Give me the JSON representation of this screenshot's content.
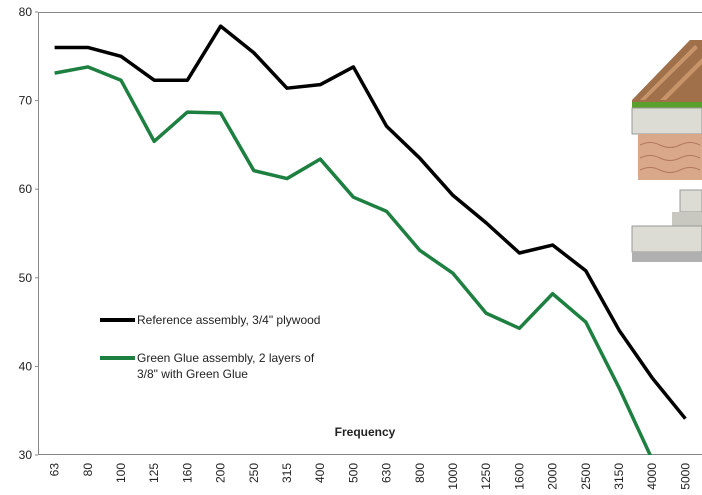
{
  "chart_data": {
    "type": "line",
    "x_label": "Frequency",
    "categories": [
      "63",
      "80",
      "100",
      "125",
      "160",
      "200",
      "250",
      "315",
      "400",
      "500",
      "630",
      "800",
      "1000",
      "1250",
      "1600",
      "2000",
      "2500",
      "3150",
      "4000",
      "5000"
    ],
    "series": [
      {
        "name": "Reference assembly, 3/4\" plywood",
        "color": "#000000",
        "values": [
          76.0,
          76.0,
          75.0,
          72.3,
          72.3,
          78.4,
          75.4,
          71.4,
          71.8,
          73.8,
          67.1,
          63.5,
          59.3,
          56.2,
          52.8,
          53.7,
          50.8,
          44.1,
          38.7,
          34.1
        ]
      },
      {
        "name": "Green Glue assembly, 2 layers of 3/8\" with Green Glue",
        "color": "#1e8040",
        "values": [
          73.1,
          73.8,
          72.3,
          65.4,
          68.7,
          68.6,
          62.1,
          61.2,
          63.4,
          59.1,
          57.5,
          53.1,
          50.5,
          46.0,
          44.3,
          48.2,
          45.0,
          37.6,
          29.5,
          null
        ]
      }
    ],
    "ylim": [
      30,
      80
    ],
    "yticks": [
      30,
      40,
      50,
      60,
      70,
      80
    ],
    "grid": false
  }
}
